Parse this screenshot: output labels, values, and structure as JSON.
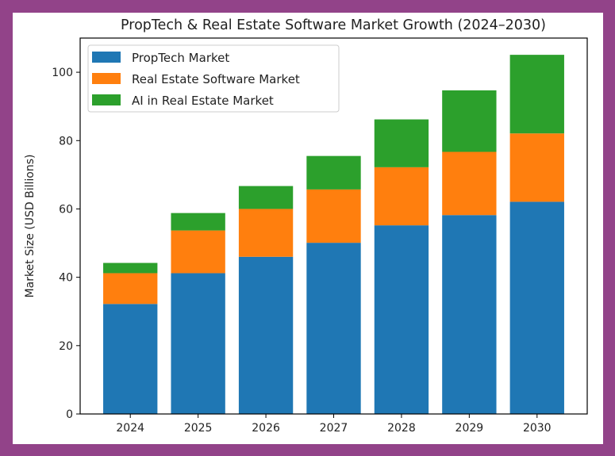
{
  "chart_data": {
    "type": "bar",
    "stacked": true,
    "title": "PropTech & Real Estate Software Market Growth (2024–2030)",
    "xlabel": "",
    "ylabel": "Market Size (USD Billions)",
    "categories": [
      "2024",
      "2025",
      "2026",
      "2027",
      "2028",
      "2029",
      "2030"
    ],
    "series": [
      {
        "name": "PropTech Market",
        "color": "#1f77b4",
        "values": [
          32.2,
          41.2,
          46.0,
          50.1,
          55.2,
          58.2,
          62.1
        ]
      },
      {
        "name": "Real Estate Software Market",
        "color": "#ff7f0e",
        "values": [
          9.0,
          12.5,
          14.0,
          15.6,
          17.0,
          18.5,
          20.0
        ]
      },
      {
        "name": "AI in Real Estate Market",
        "color": "#2ca02c",
        "values": [
          3.0,
          5.1,
          6.7,
          9.8,
          14.0,
          18.0,
          23.0
        ]
      }
    ],
    "ylim": [
      0,
      110
    ],
    "yticks": [
      "0",
      "20",
      "40",
      "60",
      "80",
      "100"
    ],
    "grid": false,
    "legend_position": "top-left"
  },
  "frame": {
    "border_color": "#924389"
  }
}
